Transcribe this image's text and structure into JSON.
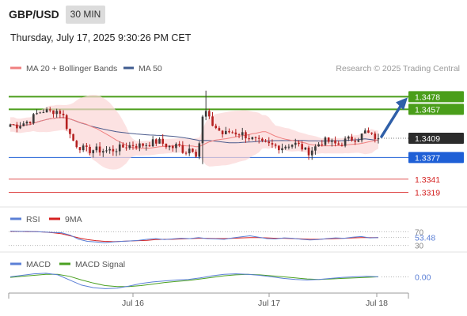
{
  "header": {
    "symbol": "GBP/USD",
    "timeframe": "30 MIN",
    "datetime": "Thursday, July 17, 2025 9:30:26 PM CET"
  },
  "legend": {
    "ma20_label": "MA 20 + Bollinger Bands",
    "ma50_label": "MA 50",
    "copyright": "Research © 2025 Trading Central"
  },
  "colors": {
    "up_candle": "#3a3a3a",
    "down_candle": "#b52020",
    "ma20": "#f08080",
    "ma50": "#4a5a8c",
    "band_fill": "#fbd5d5",
    "resistance": "#4a9e1a",
    "pivot": "#1e5fd6",
    "support": "#e05050",
    "arrow": "#2f5fa8",
    "rsi": "#5b7fd6",
    "rsi_ma": "#d62020",
    "macd": "#5b7fd6",
    "macd_signal": "#4aa020"
  },
  "chart_data": [
    {
      "type": "candlestick",
      "ylim": [
        1.33,
        1.351
      ],
      "x_ticks": [
        "Jul 16",
        "Jul 17",
        "Jul 18"
      ],
      "current_price": "1.3409",
      "levels": [
        {
          "value": 1.3478,
          "label": "1.3478",
          "kind": "resistance"
        },
        {
          "value": 1.3457,
          "label": "1.3457",
          "kind": "resistance"
        },
        {
          "value": 1.3377,
          "label": "1.3377",
          "kind": "pivot"
        },
        {
          "value": 1.3341,
          "label": "1.3341",
          "kind": "support"
        },
        {
          "value": 1.3319,
          "label": "1.3319",
          "kind": "support"
        }
      ],
      "close_path": [
        1.3432,
        1.343,
        1.3434,
        1.3438,
        1.3449,
        1.3455,
        1.3453,
        1.3455,
        1.3452,
        1.342,
        1.34,
        1.3393,
        1.3388,
        1.339,
        1.3389,
        1.3388,
        1.339,
        1.3393,
        1.3396,
        1.3398,
        1.3397,
        1.3399,
        1.3402,
        1.3404,
        1.3398,
        1.3393,
        1.3398,
        1.3385,
        1.3395,
        1.338,
        1.346,
        1.3435,
        1.3425,
        1.3415,
        1.342,
        1.3418,
        1.3416,
        1.341,
        1.3405,
        1.34,
        1.3398,
        1.3396,
        1.3394,
        1.3398,
        1.34,
        1.3395,
        1.3385,
        1.3392,
        1.3402,
        1.3405,
        1.34,
        1.3398,
        1.3406,
        1.3408,
        1.341,
        1.342,
        1.3412,
        1.3409
      ],
      "arrow_target": 1.3478
    },
    {
      "type": "line",
      "title": "RSI",
      "series": [
        {
          "name": "RSI"
        },
        {
          "name": "9MA"
        }
      ],
      "levels": [
        70,
        30
      ],
      "level_labels": [
        "70",
        "30"
      ],
      "current_value": "53.48",
      "ylim": [
        20,
        80
      ],
      "rsi": [
        72,
        71,
        71,
        70,
        69,
        68,
        67,
        60,
        48,
        42,
        40,
        38,
        40,
        42,
        43,
        45,
        48,
        50,
        47,
        49,
        51,
        50,
        53,
        50,
        49,
        48,
        52,
        55,
        58,
        54,
        50,
        49,
        52,
        51,
        48,
        46,
        47,
        50,
        52,
        51,
        54,
        56,
        52,
        53
      ],
      "rsi_ma": [
        71,
        71,
        70,
        70,
        69,
        67,
        64,
        58,
        52,
        47,
        44,
        42,
        41,
        42,
        43,
        44,
        45,
        47,
        48,
        48,
        49,
        50,
        51,
        51,
        50,
        50,
        51,
        52,
        53,
        53,
        52,
        51,
        51,
        50,
        49,
        48,
        48,
        49,
        50,
        51,
        52,
        53,
        53,
        53
      ]
    },
    {
      "type": "line",
      "title": "MACD",
      "series": [
        {
          "name": "MACD"
        },
        {
          "name": "MACD Signal"
        }
      ],
      "current_value": "0.00",
      "ylim": [
        -0.0025,
        0.0015
      ],
      "macd": [
        0.0002,
        0.0005,
        0.0008,
        0.0009,
        0.0006,
        -0.0004,
        -0.0014,
        -0.0019,
        -0.0021,
        -0.002,
        -0.0016,
        -0.0011,
        -0.0008,
        -0.0006,
        -0.0004,
        -0.0003,
        0.0,
        0.0004,
        0.0007,
        0.0008,
        0.0007,
        0.0005,
        0.0002,
        -0.0001,
        -0.0003,
        -0.0004,
        -0.0003,
        -0.0001,
        0.0001,
        0.0002,
        0.0003,
        0.0002
      ],
      "signal": [
        0.0001,
        0.0003,
        0.0005,
        0.0007,
        0.0007,
        0.0003,
        -0.0004,
        -0.001,
        -0.0015,
        -0.0017,
        -0.0017,
        -0.0015,
        -0.0012,
        -0.0009,
        -0.0007,
        -0.0005,
        -0.0002,
        0.0001,
        0.0004,
        0.0006,
        0.0007,
        0.0006,
        0.0004,
        0.0002,
        0.0,
        -0.0002,
        -0.0003,
        -0.0002,
        -0.0001,
        0.0,
        0.0001,
        0.0002
      ]
    }
  ]
}
